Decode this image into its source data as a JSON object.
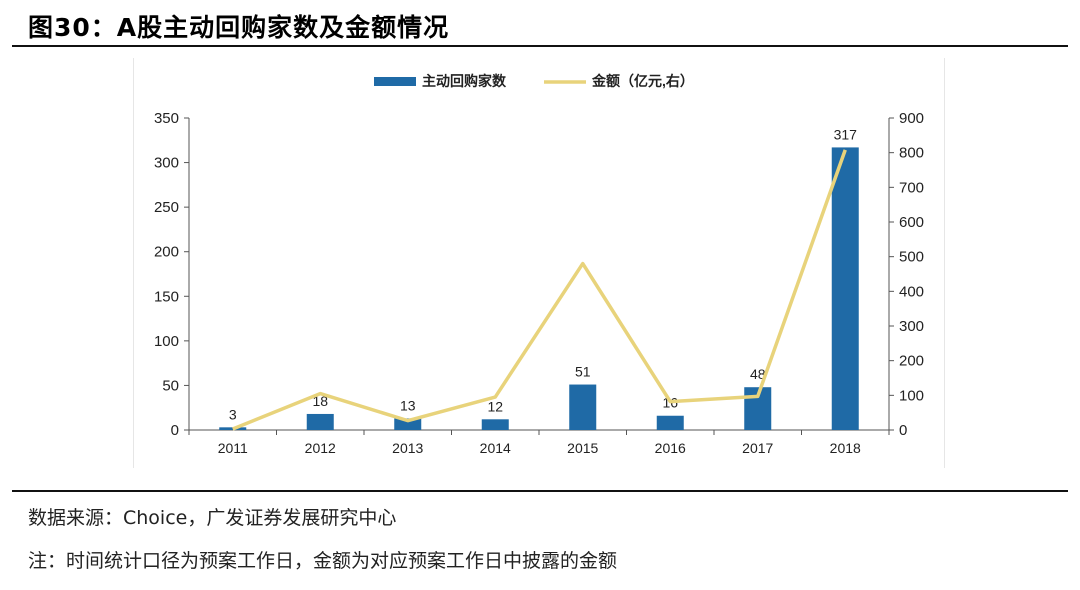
{
  "figure": {
    "title": "图30：A股主动回购家数及金额情况"
  },
  "chart_data": {
    "type": "bar",
    "categories": [
      "2011",
      "2012",
      "2013",
      "2014",
      "2015",
      "2016",
      "2017",
      "2018"
    ],
    "series": [
      {
        "name": "主动回购家数",
        "type": "bar",
        "axis": "left",
        "values": [
          3,
          18,
          13,
          12,
          51,
          16,
          48,
          317
        ],
        "data_labels": [
          "3",
          "18",
          "13",
          "12",
          "51",
          "16",
          "48",
          "317"
        ]
      },
      {
        "name": "金额（亿元,右）",
        "type": "line",
        "axis": "right",
        "values": [
          3,
          105,
          27,
          95,
          480,
          82,
          97,
          808
        ]
      }
    ],
    "left_axis": {
      "min": 0,
      "max": 350,
      "ticks": [
        "0",
        "50",
        "100",
        "150",
        "200",
        "250",
        "300",
        "350"
      ]
    },
    "right_axis": {
      "min": 0,
      "max": 900,
      "ticks": [
        "0",
        "100",
        "200",
        "300",
        "400",
        "500",
        "600",
        "700",
        "800",
        "900"
      ]
    },
    "legend_position": "top-center",
    "grid": false,
    "colors": {
      "bar": "#1f6aa6",
      "line": "#e8d37b"
    }
  },
  "notes": {
    "source": "数据来源：Choice，广发证券发展研究中心",
    "remark": "注：时间统计口径为预案工作日，金额为对应预案工作日中披露的金额"
  }
}
